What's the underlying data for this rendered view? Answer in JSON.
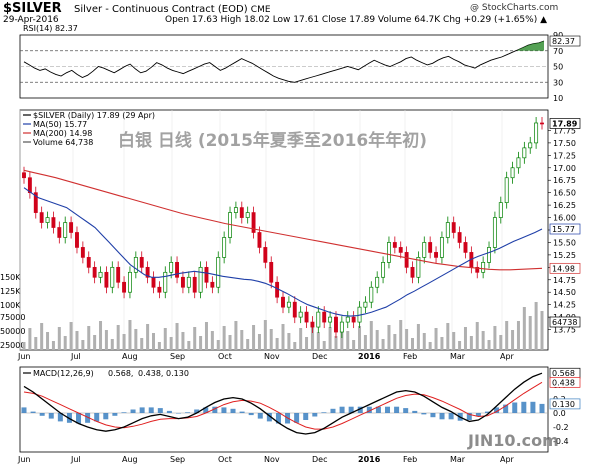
{
  "header": {
    "symbol": "$SILVER",
    "description": "Silver - Continuous Contract (EOD)",
    "exchange": "CME",
    "date": "29-Apr-2016",
    "ohlc": "Open 17.63  High 18.02  Low 17.61  Close 17.89  Volume 64.7K  Chg +0.29 (+1.65%) ▲",
    "copyright": "@ StockCharts.com"
  },
  "overlay_text": "白银 日线 (2015年夏季至2016年年初)",
  "watermark": "JIN10.com",
  "colors": {
    "up": "#008000",
    "down": "#d0021b",
    "ma50": "#1f3fa8",
    "ma200": "#d03030",
    "rsi": "#000000",
    "macd": "#000000",
    "signal": "#e02020",
    "hist": "#3a7fc0",
    "volume": "#b0b0b0"
  },
  "chart_data": [
    {
      "type": "line",
      "title": "RSI(14) 82.37",
      "indicator": "RSI(14)",
      "last_value": 82.37,
      "ylim": [
        10,
        90
      ],
      "yticks": [
        90,
        70,
        50,
        30,
        10
      ],
      "reference_lines": [
        70,
        30
      ],
      "values": [
        56,
        52,
        48,
        45,
        47,
        43,
        40,
        38,
        42,
        45,
        40,
        36,
        39,
        44,
        50,
        48,
        45,
        42,
        46,
        50,
        53,
        47,
        42,
        44,
        49,
        55,
        52,
        48,
        45,
        43,
        41,
        44,
        47,
        50,
        53,
        55,
        50,
        45,
        48,
        52,
        56,
        60,
        57,
        54,
        50,
        46,
        42,
        38,
        35,
        33,
        31,
        30,
        32,
        34,
        36,
        38,
        40,
        42,
        44,
        46,
        48,
        50,
        48,
        46,
        50,
        54,
        58,
        55,
        52,
        50,
        53,
        56,
        60,
        62,
        58,
        55,
        52,
        54,
        58,
        61,
        63,
        59,
        56,
        52,
        50,
        48,
        52,
        55,
        58,
        60,
        62,
        65,
        68,
        71,
        74,
        77,
        79,
        80,
        82.37
      ]
    },
    {
      "type": "candlestick",
      "title": "$SILVER (Daily) 17.89 (29 Apr)",
      "legend": [
        {
          "name": "$SILVER (Daily) 17.89 (29 Apr)"
        },
        {
          "name": "MA(50) 15.77"
        },
        {
          "name": "MA(200) 14.98"
        },
        {
          "name": "Volume 64,738"
        }
      ],
      "x_labels": [
        "Jun",
        "Jul",
        "Aug",
        "Sep",
        "Oct",
        "Nov",
        "Dec",
        "2016",
        "Feb",
        "Mar",
        "Apr"
      ],
      "ylim": [
        13.5,
        18.0
      ],
      "yticks": [
        17.75,
        17.5,
        17.25,
        17.0,
        16.75,
        16.5,
        16.25,
        16.0,
        15.75,
        15.5,
        15.25,
        15.0,
        14.75,
        14.5,
        14.25,
        14.0,
        13.75
      ],
      "price_labels": {
        "close": "17.89",
        "ma50": "15.77",
        "ma200": "14.98",
        "volume": "64738"
      },
      "volume_axis": [
        "150K",
        "125K",
        "100K",
        "75000",
        "50000",
        "25000"
      ],
      "close": [
        16.8,
        16.5,
        16.1,
        15.9,
        16.0,
        15.8,
        15.6,
        15.9,
        15.7,
        15.4,
        15.2,
        15.0,
        14.8,
        14.9,
        14.6,
        15.0,
        14.7,
        14.5,
        14.9,
        15.2,
        15.0,
        14.8,
        14.6,
        14.5,
        14.9,
        15.1,
        14.8,
        14.6,
        14.8,
        14.5,
        15.0,
        14.7,
        14.6,
        15.2,
        15.6,
        16.1,
        16.2,
        16.0,
        16.1,
        15.7,
        15.4,
        15.1,
        14.7,
        14.4,
        14.2,
        14.3,
        14.0,
        14.1,
        13.9,
        13.8,
        14.1,
        13.9,
        14.0,
        13.7,
        13.9,
        14.0,
        13.9,
        14.2,
        14.3,
        14.6,
        14.8,
        15.1,
        15.5,
        15.4,
        15.3,
        15.0,
        14.8,
        15.2,
        15.5,
        15.3,
        15.2,
        15.6,
        15.9,
        15.7,
        15.5,
        15.3,
        15.0,
        14.9,
        15.1,
        15.4,
        16.0,
        16.3,
        16.8,
        17.0,
        17.2,
        17.4,
        17.5,
        17.9,
        17.89
      ],
      "ma50": [
        16.6,
        16.5,
        16.4,
        16.35,
        16.3,
        16.25,
        16.2,
        16.1,
        16.0,
        15.9,
        15.8,
        15.65,
        15.5,
        15.35,
        15.2,
        15.05,
        14.95,
        14.85,
        14.8,
        14.8,
        14.82,
        14.85,
        14.88,
        14.9,
        14.92,
        14.9,
        14.88,
        14.85,
        14.82,
        14.8,
        14.78,
        14.76,
        14.75,
        14.72,
        14.68,
        14.62,
        14.55,
        14.48,
        14.4,
        14.32,
        14.25,
        14.2,
        14.15,
        14.1,
        14.06,
        14.03,
        14.02,
        14.03,
        14.06,
        14.1,
        14.15,
        14.2,
        14.28,
        14.36,
        14.45,
        14.52,
        14.6,
        14.68,
        14.76,
        14.84,
        14.92,
        15.0,
        15.08,
        15.16,
        15.22,
        15.27,
        15.32,
        15.38,
        15.45,
        15.52,
        15.58,
        15.64,
        15.7,
        15.77
      ],
      "ma200": [
        16.95,
        16.9,
        16.85,
        16.8,
        16.74,
        16.68,
        16.62,
        16.56,
        16.5,
        16.44,
        16.38,
        16.32,
        16.26,
        16.2,
        16.14,
        16.08,
        16.03,
        15.98,
        15.93,
        15.88,
        15.84,
        15.8,
        15.76,
        15.72,
        15.68,
        15.64,
        15.6,
        15.56,
        15.52,
        15.48,
        15.44,
        15.4,
        15.36,
        15.32,
        15.28,
        15.24,
        15.2,
        15.16,
        15.12,
        15.08,
        15.05,
        15.02,
        15.0,
        14.98,
        14.96,
        14.95,
        14.95,
        14.96,
        14.97,
        14.98
      ]
    },
    {
      "type": "line",
      "title": "MACD(12,26,9) 0.568, 0.438, 0.130",
      "indicator": "MACD(12,26,9)",
      "legend": [
        {
          "name": "MACD(12,26,9)",
          "value": "0.568"
        },
        {
          "name": "signal",
          "value": "0.438"
        },
        {
          "name": "histogram",
          "value": "0.130"
        }
      ],
      "ylim": [
        -0.5,
        0.6
      ],
      "yticks": [
        0.4,
        0.2,
        0.0,
        -0.2,
        -0.4
      ],
      "macd": [
        0.38,
        0.3,
        0.2,
        0.1,
        0.0,
        -0.08,
        -0.15,
        -0.2,
        -0.24,
        -0.26,
        -0.24,
        -0.2,
        -0.14,
        -0.08,
        -0.04,
        -0.02,
        -0.05,
        -0.08,
        -0.06,
        0.0,
        0.08,
        0.15,
        0.2,
        0.22,
        0.2,
        0.14,
        0.06,
        -0.04,
        -0.14,
        -0.22,
        -0.28,
        -0.3,
        -0.28,
        -0.22,
        -0.14,
        -0.06,
        0.0,
        0.06,
        0.12,
        0.18,
        0.24,
        0.3,
        0.32,
        0.3,
        0.24,
        0.16,
        0.08,
        0.02,
        -0.06,
        -0.12,
        -0.1,
        -0.02,
        0.1,
        0.22,
        0.34,
        0.44,
        0.52,
        0.568
      ],
      "signal": [
        0.3,
        0.28,
        0.24,
        0.18,
        0.12,
        0.06,
        0.0,
        -0.06,
        -0.12,
        -0.17,
        -0.2,
        -0.21,
        -0.19,
        -0.16,
        -0.12,
        -0.09,
        -0.08,
        -0.08,
        -0.07,
        -0.05,
        0.0,
        0.06,
        0.12,
        0.16,
        0.18,
        0.17,
        0.14,
        0.08,
        0.01,
        -0.07,
        -0.14,
        -0.2,
        -0.23,
        -0.23,
        -0.2,
        -0.15,
        -0.09,
        -0.03,
        0.03,
        0.09,
        0.15,
        0.21,
        0.25,
        0.27,
        0.26,
        0.22,
        0.17,
        0.11,
        0.05,
        -0.02,
        -0.05,
        -0.04,
        0.02,
        0.1,
        0.19,
        0.28,
        0.36,
        0.438
      ]
    }
  ]
}
